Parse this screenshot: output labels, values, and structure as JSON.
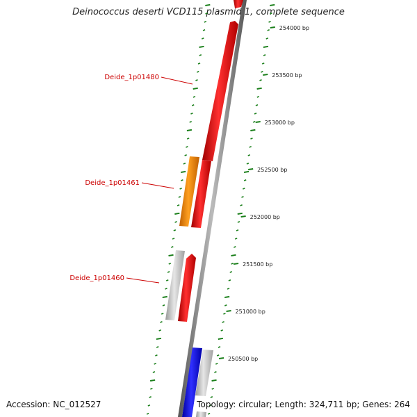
{
  "title": "Deinococcus deserti VCD115 plasmid 1, complete sequence",
  "footer": {
    "accession_label": "Accession:",
    "accession": "NC_012527",
    "topology_label": "Topology:",
    "topology": "circular",
    "length_label": "Length:",
    "length": "324,711 bp",
    "genes_label": "Genes:",
    "genes": "264"
  },
  "ticks": [
    {
      "bp": 254000,
      "label": "254000 bp"
    },
    {
      "bp": 253500,
      "label": "253500 bp"
    },
    {
      "bp": 253000,
      "label": "253000 bp"
    },
    {
      "bp": 252500,
      "label": "252500 bp"
    },
    {
      "bp": 252000,
      "label": "252000 bp"
    },
    {
      "bp": 251500,
      "label": "251500 bp"
    },
    {
      "bp": 251000,
      "label": "251000 bp"
    },
    {
      "bp": 250500,
      "label": "250500 bp"
    }
  ],
  "gene_labels": [
    {
      "name": "Deide_1p01480"
    },
    {
      "name": "Deide_1p01461"
    },
    {
      "name": "Deide_1p01460"
    }
  ],
  "colors": {
    "red": "#ee0000",
    "orange": "#ee8800",
    "gray": "#bbbbbb",
    "blue": "#0000ee",
    "tick_green": "#1a7f1a",
    "backbone": "#888888",
    "label_red": "#cc0000"
  }
}
